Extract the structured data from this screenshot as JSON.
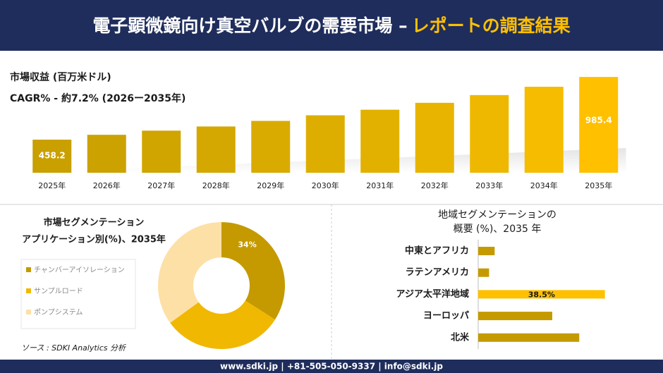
{
  "header": {
    "title": "電子顕微鏡向け真空バルブの需要市場 –",
    "title_highlight": "レポートの調査結果"
  },
  "chart_data": [
    {
      "type": "bar",
      "subtitle": "市場収益 (百万米ドル)",
      "note": "CAGR% - 約7.2% (2026ー2035年)",
      "categories": [
        "2025年",
        "2026年",
        "2027年",
        "2028年",
        "2029年",
        "2030年",
        "2031年",
        "2032年",
        "2033年",
        "2034年",
        "2035年"
      ],
      "values": [
        458.2,
        499,
        534,
        569,
        616,
        663,
        710,
        768,
        833,
        903,
        985.4
      ],
      "colors": [
        "#c9a000",
        "#cca200",
        "#d0a500",
        "#d4a800",
        "#d9ab00",
        "#ddae00",
        "#e2b100",
        "#e8b400",
        "#eeb800",
        "#f6bc00",
        "#ffc000"
      ],
      "ylim": [
        180,
        1010
      ]
    },
    {
      "type": "doughnut",
      "title": "市場セグメンテーション",
      "subtitle": "アプリケーション別(%)、2035年",
      "categories": [
        "チャンバーアイソレーション",
        "サンプルロード",
        "ポンプシステム"
      ],
      "values": [
        34,
        31,
        35
      ],
      "value_labels": [
        "34%",
        null,
        null
      ],
      "colors": [
        "#c49a00",
        "#f0b800",
        "#fde0a6"
      ]
    },
    {
      "type": "hbar",
      "title": "地域セグメンテーションの",
      "subtitle": "概要 (%)、2035 年",
      "categories": [
        "中東とアフリカ",
        "ラテンアメリカ",
        "アジア太平洋地域",
        "ヨーロッパ",
        "北米"
      ],
      "values": [
        5,
        3.3,
        38.5,
        22.5,
        30.7
      ],
      "value_labels": [
        null,
        null,
        "38.5%",
        null,
        null
      ],
      "color": "#c49a00",
      "highlight_color": "#ffc000",
      "xlim": [
        0,
        45
      ]
    }
  ],
  "source": "ソース : SDKI Analytics 分析",
  "footer": "www.sdki.jp | +81-505-050-9337 | info@sdki.jp"
}
